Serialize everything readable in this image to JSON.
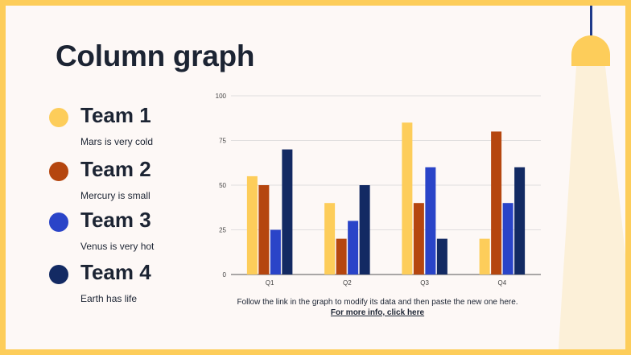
{
  "slide": {
    "title": "Column graph",
    "legend": [
      {
        "name": "Team 1",
        "desc": "Mars is very cold",
        "color": "#fdcd5a"
      },
      {
        "name": "Team 2",
        "desc": "Mercury is small",
        "color": "#b5460f"
      },
      {
        "name": "Team 3",
        "desc": "Venus is very hot",
        "color": "#2a44c8"
      },
      {
        "name": "Team 4",
        "desc": "Earth has life",
        "color": "#132a63"
      }
    ],
    "footer_text": "Follow the link in the graph to modify its data and then paste the new one here.",
    "footer_link": "For more info, click here"
  },
  "colors": {
    "background": "#fdf8f6",
    "border": "#fdcd5a",
    "lamp_beam": "#fcf0d8"
  },
  "chart_data": {
    "type": "bar",
    "categories": [
      "Q1",
      "Q2",
      "Q3",
      "Q4"
    ],
    "series": [
      {
        "values": [
          55,
          40,
          85,
          20
        ],
        "color": "#fdcd5a"
      },
      {
        "values": [
          50,
          20,
          40,
          80
        ],
        "color": "#b5460f"
      },
      {
        "values": [
          25,
          30,
          60,
          40
        ],
        "color": "#2a44c8"
      },
      {
        "values": [
          70,
          50,
          20,
          60
        ],
        "color": "#132a63"
      }
    ],
    "yticks": [
      0,
      25,
      50,
      75,
      100
    ],
    "ylim": [
      0,
      100
    ],
    "grid": true,
    "legend": "none"
  }
}
